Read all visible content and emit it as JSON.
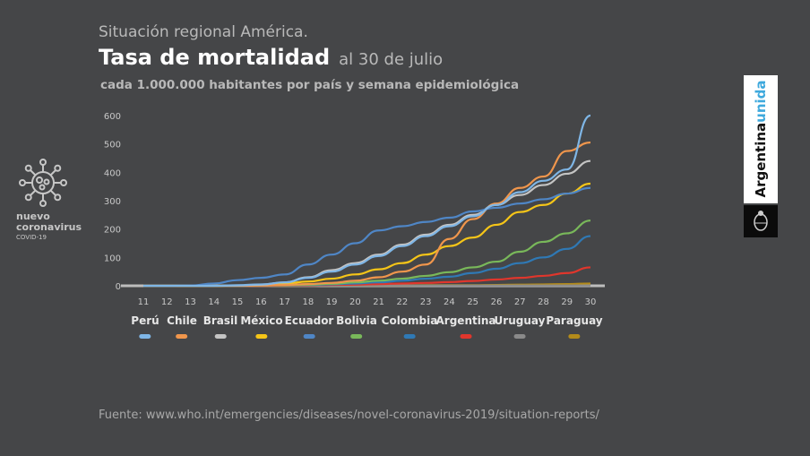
{
  "header": {
    "supertitle": "Situación regional América.",
    "title": "Tasa de mortalidad",
    "date": "al 30 de julio",
    "subtitle": "cada 1.000.000 habitantes por país y semana epidemiológica"
  },
  "logo": {
    "line1": "nuevo",
    "line2": "coronavirus",
    "line3": "COVID-19",
    "icon": "virus-icon"
  },
  "brand": {
    "part1": "Argentina",
    "part2": "unida",
    "icon": "coat-of-arms-icon"
  },
  "source": "Fuente: www.who.int/emergencies/diseases/novel-coronavirus-2019/situation-reports/",
  "chart_data": {
    "type": "line",
    "title": "Tasa de mortalidad",
    "xlabel": "",
    "ylabel": "",
    "x": [
      11,
      12,
      13,
      14,
      15,
      16,
      17,
      18,
      19,
      20,
      21,
      22,
      23,
      24,
      25,
      26,
      27,
      28,
      29,
      30
    ],
    "ylim": [
      0,
      600
    ],
    "yticks": [
      0,
      100,
      200,
      300,
      400,
      500,
      600
    ],
    "grid": false,
    "legend": "bottom",
    "series": [
      {
        "name": "Perú",
        "color": "#7fb6e6",
        "values": [
          0,
          0,
          0,
          0,
          2,
          5,
          12,
          28,
          50,
          75,
          105,
          140,
          175,
          210,
          245,
          285,
          330,
          370,
          410,
          600
        ]
      },
      {
        "name": "Chile",
        "color": "#f0964c",
        "values": [
          0,
          0,
          0,
          0,
          0,
          1,
          3,
          6,
          10,
          18,
          30,
          50,
          75,
          165,
          235,
          290,
          345,
          385,
          475,
          505
        ]
      },
      {
        "name": "Brasil",
        "color": "#c4c4c4",
        "values": [
          0,
          0,
          0,
          0,
          1,
          4,
          12,
          30,
          55,
          80,
          110,
          145,
          180,
          215,
          250,
          285,
          320,
          355,
          395,
          440
        ]
      },
      {
        "name": "México",
        "color": "#f5c518",
        "values": [
          0,
          0,
          0,
          0,
          1,
          3,
          8,
          15,
          25,
          40,
          58,
          80,
          110,
          140,
          170,
          215,
          260,
          285,
          325,
          360
        ]
      },
      {
        "name": "Ecuador",
        "color": "#4f86c6",
        "values": [
          0,
          0,
          1,
          8,
          20,
          28,
          40,
          75,
          110,
          150,
          195,
          210,
          225,
          240,
          262,
          275,
          290,
          305,
          325,
          345
        ]
      },
      {
        "name": "Bolivia",
        "color": "#79b85a",
        "values": [
          0,
          0,
          0,
          0,
          0,
          1,
          2,
          4,
          7,
          12,
          18,
          25,
          35,
          48,
          65,
          85,
          120,
          155,
          185,
          230
        ]
      },
      {
        "name": "Colombia",
        "color": "#2f79b5",
        "values": [
          0,
          0,
          0,
          0,
          0,
          1,
          2,
          3,
          5,
          8,
          12,
          18,
          25,
          32,
          45,
          60,
          80,
          100,
          130,
          175
        ]
      },
      {
        "name": "Argentina",
        "color": "#e0362c",
        "values": [
          0,
          0,
          0,
          0,
          0,
          0,
          1,
          2,
          3,
          4,
          6,
          8,
          10,
          13,
          17,
          22,
          28,
          35,
          45,
          65
        ]
      },
      {
        "name": "Uruguay",
        "color": "#8a8a8a",
        "values": [
          0,
          0,
          0,
          0,
          0,
          0,
          0,
          0,
          1,
          1,
          1,
          1,
          1,
          1,
          1,
          1,
          1,
          1,
          1,
          1
        ]
      },
      {
        "name": "Paraguay",
        "color": "#b38b1a",
        "values": [
          0,
          0,
          0,
          0,
          0,
          0,
          0,
          0,
          1,
          1,
          1,
          1,
          2,
          2,
          2,
          3,
          4,
          5,
          6,
          8
        ]
      }
    ]
  }
}
